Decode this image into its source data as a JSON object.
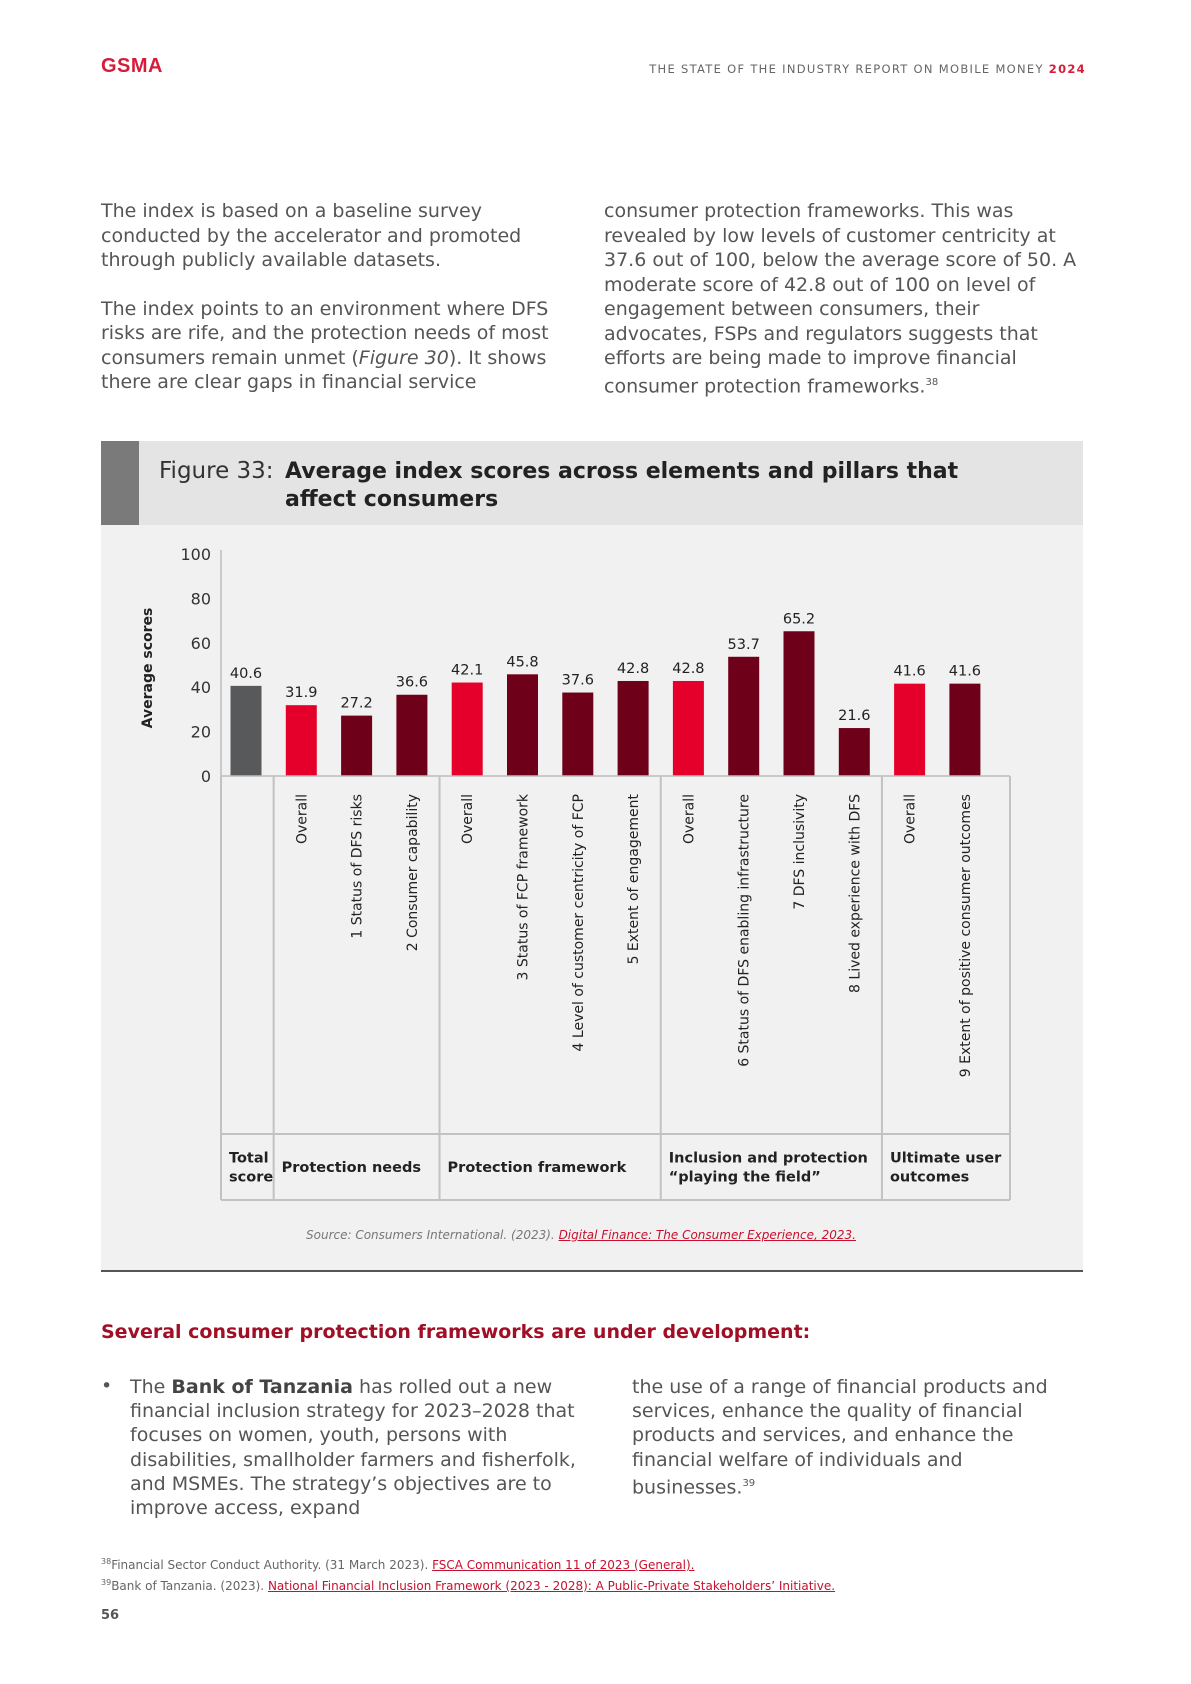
{
  "header": {
    "logo": "GSMA",
    "report_title": "THE STATE OF THE INDUSTRY REPORT ON MOBILE MONEY",
    "report_year": "2024"
  },
  "intro": {
    "left_p1": "The index is based on a baseline survey conducted by the accelerator and promoted through publicly available datasets.",
    "left_p2_a": "The index points to an environment where DFS risks are rife, and the protection needs of most consumers remain unmet (",
    "left_p2_ref": "Figure 30",
    "left_p2_b": "). It shows there are clear gaps in financial service",
    "right_p": "consumer protection frameworks. This was revealed by low levels of customer centricity at 37.6 out of 100, below the average score of 50. A moderate score of 42.8 out of 100 on level of engagement between consumers, their advocates, FSPs and regulators suggests that efforts are being made to improve financial consumer protection frameworks.",
    "right_sup": "38"
  },
  "figure": {
    "label": "Figure 33:",
    "title": "Average index scores across elements and pillars that affect consumers",
    "source_prefix": "Source: Consumers International. (2023). ",
    "source_link": "Digital Finance: The Consumer Experience, 2023."
  },
  "chart_data": {
    "type": "bar",
    "ylabel": "Average scores",
    "ylim": [
      0,
      100
    ],
    "yticks": [
      0,
      20,
      40,
      60,
      80,
      100
    ],
    "categories": [
      "Total score",
      "Overall",
      "1 Status of DFS risks",
      "2 Consumer capability",
      "Overall",
      "3 Status of FCP framework",
      "4 Level of customer centricity of FCP",
      "5 Extent of engagement",
      "Overall",
      "6 Status of DFS enabling infrastructure",
      "7 DFS inclusivity",
      "8 Lived experience with DFS",
      "Overall",
      "9 Extent of positive consumer outcomes"
    ],
    "values": [
      40.6,
      31.9,
      27.2,
      36.6,
      42.1,
      45.8,
      37.6,
      42.8,
      42.8,
      53.7,
      65.2,
      21.6,
      41.6,
      41.6
    ],
    "value_labels": [
      "40.6",
      "31.9",
      "27.2",
      "36.6",
      "42.1",
      "45.8",
      "37.6",
      "42.8",
      "42.8",
      "53.7",
      "65.2",
      "21.6",
      "41.6",
      "41.6"
    ],
    "kinds": [
      "total",
      "overall",
      "element",
      "element",
      "overall",
      "element",
      "element",
      "element",
      "overall",
      "element",
      "element",
      "element",
      "overall",
      "element"
    ],
    "colors": {
      "total": "#58595b",
      "overall": "#e4002b",
      "element": "#6e0019"
    },
    "groups": [
      {
        "lines": [
          "Total",
          "score"
        ],
        "count": 1
      },
      {
        "lines": [
          "Protection needs"
        ],
        "count": 3
      },
      {
        "lines": [
          "Protection framework"
        ],
        "count": 4
      },
      {
        "lines": [
          "Inclusion and protection",
          "“playing the field”"
        ],
        "count": 4
      },
      {
        "lines": [
          "Ultimate user",
          "outcomes"
        ],
        "count": 2
      }
    ]
  },
  "section": {
    "heading": "Several consumer protection frameworks are under development:",
    "bullet_marker": "•",
    "bullet_pre": "The ",
    "bullet_bold": "Bank of Tanzania",
    "bullet_left_rest": " has rolled out a new financial inclusion strategy for 2023–2028 that focuses on women, youth, persons with disabilities, smallholder farmers and fisherfolk, and MSMEs. The strategy’s objectives are to improve access, expand",
    "bullet_right": "the use of a range of financial products and services, enhance the quality of financial products and services, and enhance the financial welfare of individuals and businesses.",
    "bullet_right_sup": "39"
  },
  "footnotes": [
    {
      "num": "38",
      "text": "Financial Sector Conduct Authority. (31 March 2023). ",
      "link": "FSCA Communication 11 of 2023 (General)."
    },
    {
      "num": "39",
      "text": "Bank of Tanzania. (2023). ",
      "link": "National Financial Inclusion Framework (2023 - 2028): A Public-Private Stakeholders’ Initiative."
    }
  ],
  "page_number": "56"
}
